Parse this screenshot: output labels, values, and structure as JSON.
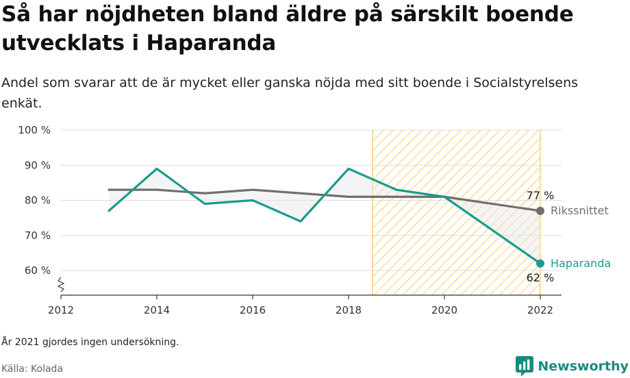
{
  "title": "Så har nöjdheten bland äldre på särskilt boende utvecklats i Haparanda",
  "subtitle": "Andel som svarar att de är mycket eller ganska nöjda med sitt boende i Socialstyrelsens enkät.",
  "note": "År 2021 gjordes ingen undersökning.",
  "source": "Källa: Kolada",
  "brand": {
    "name": "Newsworthy",
    "icon": "newsworthy-logo-icon",
    "color": "#1a8a80"
  },
  "chart_data": {
    "type": "line",
    "x": [
      2013,
      2014,
      2015,
      2016,
      2017,
      2018,
      2019,
      2020,
      2022
    ],
    "xlim": [
      2012,
      2022.45
    ],
    "xticks": [
      "2012",
      "2014",
      "2016",
      "2018",
      "2020",
      "2022"
    ],
    "ylim": [
      53,
      100
    ],
    "yticks": [
      "60 %",
      "70 %",
      "80 %",
      "90 %",
      "100 %"
    ],
    "axis_break": true,
    "highlight_range": [
      2018.5,
      2022
    ],
    "series": [
      {
        "name": "Rikssnittet",
        "color": "#6f6f6f",
        "values": [
          83,
          83,
          82,
          83,
          82,
          81,
          81,
          81,
          77
        ],
        "end_label": "77 %"
      },
      {
        "name": "Haparanda",
        "color": "#1a9c8d",
        "values": [
          77,
          89,
          79,
          80,
          74,
          89,
          83,
          81,
          62
        ],
        "end_label": "62 %"
      }
    ],
    "grid": true
  }
}
